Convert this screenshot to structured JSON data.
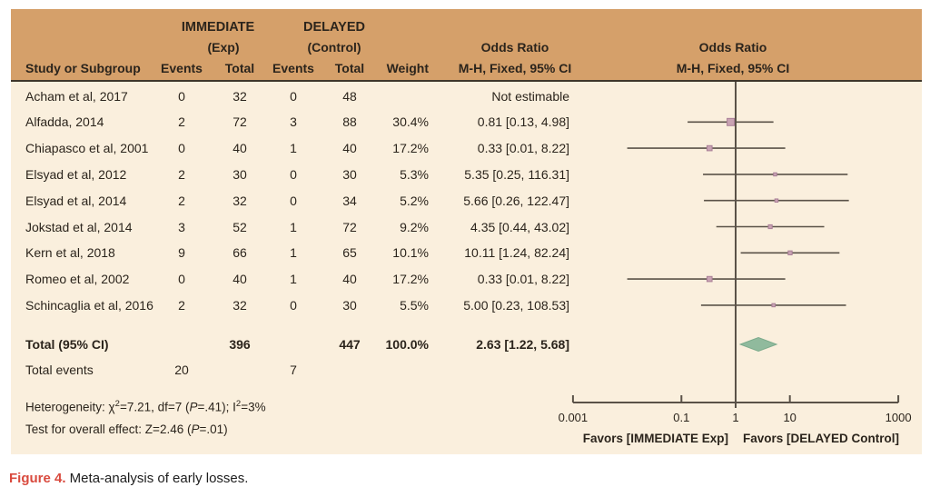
{
  "header": {
    "group1_line1": "IMMEDIATE",
    "group1_line2": "(Exp)",
    "group2_line1": "DELAYED",
    "group2_line2": "(Control)",
    "col_study": "Study or Subgroup",
    "col_events1": "Events",
    "col_total1": "Total",
    "col_events2": "Events",
    "col_total2": "Total",
    "col_weight": "Weight",
    "col_or": "M-H, Fixed, 95% CI",
    "or_title_left": "Odds Ratio",
    "plot_title": "Odds Ratio",
    "plot_subtitle": "M-H, Fixed, 95% CI"
  },
  "totals": {
    "label": "Total (95% CI)",
    "total1": "396",
    "total2": "447",
    "weight": "100.0%",
    "or_text": "2.63 [1.22, 5.68]",
    "events_label": "Total events",
    "events1": "20",
    "events2": "7"
  },
  "footnotes": {
    "het": {
      "a": "Heterogeneity: χ",
      "sup1": "2",
      "b": "=7.21, df=7 (",
      "p": "P",
      "c": "=.41); I",
      "sup2": "2",
      "d": "=3%"
    },
    "overall": {
      "a": "Test for overall effect: Z=2.46 (",
      "p": "P",
      "b": "=.01)"
    }
  },
  "caption": {
    "label": "Figure 4.",
    "text": " Meta-analysis of early losses."
  },
  "colors": {
    "header_bg": "#d5a06a",
    "body_bg": "#faefdd",
    "text": "#2b241c",
    "line": "#5a5248",
    "separator": "#3f362a",
    "marker_fill": "#c9a3b3",
    "marker_border": "#a97f97",
    "diamond_fill": "#90ba9d",
    "diamond_border": "#7cab8c",
    "caption_red": "#d94a3e"
  },
  "chart_data": {
    "type": "forest",
    "effect_measure": "Odds Ratio, M-H, Fixed, 95% CI",
    "scale": "log",
    "xlim": [
      0.001,
      1000
    ],
    "studies": [
      {
        "name": "Acham et al, 2017",
        "e1": "0",
        "t1": "32",
        "e2": "0",
        "t2": "48",
        "weight": "",
        "weight_val": 0,
        "or_text": "Not estimable",
        "or": null,
        "ci": null,
        "estimable": false
      },
      {
        "name": "Alfadda, 2014",
        "e1": "2",
        "t1": "72",
        "e2": "3",
        "t2": "88",
        "weight": "30.4%",
        "weight_val": 30.4,
        "or_text": "0.81 [0.13, 4.98]",
        "or": 0.81,
        "ci": [
          0.13,
          4.98
        ],
        "estimable": true
      },
      {
        "name": "Chiapasco et al, 2001",
        "e1": "0",
        "t1": "40",
        "e2": "1",
        "t2": "40",
        "weight": "17.2%",
        "weight_val": 17.2,
        "or_text": "0.33 [0.01, 8.22]",
        "or": 0.33,
        "ci": [
          0.01,
          8.22
        ],
        "estimable": true
      },
      {
        "name": "Elsyad et al, 2012",
        "e1": "2",
        "t1": "30",
        "e2": "0",
        "t2": "30",
        "weight": "5.3%",
        "weight_val": 5.3,
        "or_text": "5.35 [0.25, 116.31]",
        "or": 5.35,
        "ci": [
          0.25,
          116.31
        ],
        "estimable": true
      },
      {
        "name": "Elsyad et al, 2014",
        "e1": "2",
        "t1": "32",
        "e2": "0",
        "t2": "34",
        "weight": "5.2%",
        "weight_val": 5.2,
        "or_text": "5.66 [0.26, 122.47]",
        "or": 5.66,
        "ci": [
          0.26,
          122.47
        ],
        "estimable": true
      },
      {
        "name": "Jokstad et al, 2014",
        "e1": "3",
        "t1": "52",
        "e2": "1",
        "t2": "72",
        "weight": "9.2%",
        "weight_val": 9.2,
        "or_text": "4.35 [0.44, 43.02]",
        "or": 4.35,
        "ci": [
          0.44,
          43.02
        ],
        "estimable": true
      },
      {
        "name": "Kern et al, 2018",
        "e1": "9",
        "t1": "66",
        "e2": "1",
        "t2": "65",
        "weight": "10.1%",
        "weight_val": 10.1,
        "or_text": "10.11 [1.24, 82.24]",
        "or": 10.11,
        "ci": [
          1.24,
          82.24
        ],
        "estimable": true
      },
      {
        "name": "Romeo et al, 2002",
        "e1": "0",
        "t1": "40",
        "e2": "1",
        "t2": "40",
        "weight": "17.2%",
        "weight_val": 17.2,
        "or_text": "0.33 [0.01, 8.22]",
        "or": 0.33,
        "ci": [
          0.01,
          8.22
        ],
        "estimable": true
      },
      {
        "name": "Schincaglia et al, 2016",
        "e1": "2",
        "t1": "32",
        "e2": "0",
        "t2": "30",
        "weight": "5.5%",
        "weight_val": 5.5,
        "or_text": "5.00 [0.23, 108.53]",
        "or": 5.0,
        "ci": [
          0.23,
          108.53
        ],
        "estimable": true
      }
    ],
    "total": {
      "or": 2.63,
      "ci": [
        1.22,
        5.68
      ]
    },
    "axis": {
      "ticks": [
        0.001,
        0.1,
        1,
        10,
        1000
      ],
      "labels": [
        "0.001",
        "0.1",
        "1",
        "10",
        "1000"
      ],
      "favors_left": "Favors [IMMEDIATE Exp]",
      "favors_right": "Favors [DELAYED Control]"
    }
  }
}
